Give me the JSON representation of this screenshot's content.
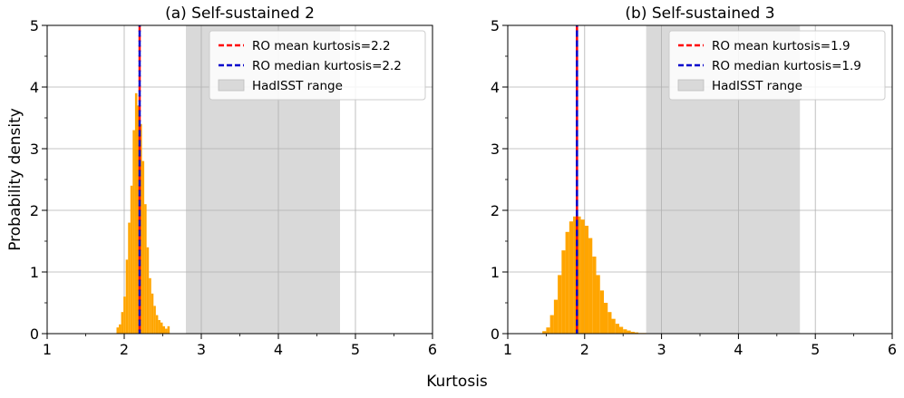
{
  "figure": {
    "shared_xlabel": "Kurtosis",
    "shared_ylabel": "Probability density"
  },
  "chart_data": [
    {
      "type": "histogram",
      "title": "(a) Self-sustained 2",
      "xlabel": "Kurtosis",
      "ylabel": "Probability density",
      "xlim": [
        1,
        6
      ],
      "ylim": [
        0,
        5
      ],
      "xticks": [
        1,
        2,
        3,
        4,
        5,
        6
      ],
      "yticks": [
        0,
        1,
        2,
        3,
        4,
        5
      ],
      "grid": true,
      "bar_color": "#ffa500",
      "hist_x": [
        1.9,
        1.93,
        1.96,
        1.99,
        2.02,
        2.05,
        2.08,
        2.11,
        2.14,
        2.17,
        2.2,
        2.23,
        2.26,
        2.29,
        2.32,
        2.35,
        2.38,
        2.41,
        2.44,
        2.47,
        2.5,
        2.53,
        2.56
      ],
      "hist_y": [
        0.1,
        0.15,
        0.35,
        0.6,
        1.2,
        1.8,
        2.4,
        3.3,
        3.9,
        3.7,
        3.4,
        2.8,
        2.1,
        1.4,
        0.9,
        0.65,
        0.45,
        0.3,
        0.22,
        0.18,
        0.12,
        0.08,
        0.12
      ],
      "bin_width": 0.03,
      "hadisst_range": [
        2.8,
        4.8
      ],
      "hadisst_color": "#d9d9d9",
      "mean_kurtosis": 2.2,
      "median_kurtosis": 2.2,
      "mean_color": "#ff0000",
      "median_color": "#0000cc",
      "legend_position": "upper right",
      "legend": [
        {
          "label": "RO mean kurtosis=2.2",
          "kind": "dash",
          "color": "#ff0000"
        },
        {
          "label": "RO median kurtosis=2.2",
          "kind": "dash",
          "color": "#0000cc"
        },
        {
          "label": "HadISST range",
          "kind": "patch",
          "color": "#d9d9d9"
        }
      ]
    },
    {
      "type": "histogram",
      "title": "(b) Self-sustained 3",
      "xlabel": "Kurtosis",
      "ylabel": "Probability density",
      "xlim": [
        1,
        6
      ],
      "ylim": [
        0,
        5
      ],
      "xticks": [
        1,
        2,
        3,
        4,
        5,
        6
      ],
      "yticks": [
        0,
        1,
        2,
        3,
        4,
        5
      ],
      "grid": true,
      "bar_color": "#ffa500",
      "hist_x": [
        1.45,
        1.5,
        1.55,
        1.6,
        1.65,
        1.7,
        1.75,
        1.8,
        1.85,
        1.9,
        1.95,
        2.0,
        2.05,
        2.1,
        2.15,
        2.2,
        2.25,
        2.3,
        2.35,
        2.4,
        2.45,
        2.5,
        2.55,
        2.6,
        2.65,
        2.7,
        2.75
      ],
      "hist_y": [
        0.04,
        0.1,
        0.3,
        0.55,
        0.95,
        1.35,
        1.65,
        1.82,
        1.9,
        1.9,
        1.85,
        1.75,
        1.55,
        1.25,
        0.95,
        0.7,
        0.5,
        0.35,
        0.24,
        0.16,
        0.11,
        0.07,
        0.05,
        0.03,
        0.02,
        0.01,
        0.01
      ],
      "bin_width": 0.05,
      "hadisst_range": [
        2.8,
        4.8
      ],
      "hadisst_color": "#d9d9d9",
      "mean_kurtosis": 1.9,
      "median_kurtosis": 1.9,
      "mean_color": "#ff0000",
      "median_color": "#0000cc",
      "legend_position": "upper right",
      "legend": [
        {
          "label": "RO mean kurtosis=1.9",
          "kind": "dash",
          "color": "#ff0000"
        },
        {
          "label": "RO median kurtosis=1.9",
          "kind": "dash",
          "color": "#0000cc"
        },
        {
          "label": "HadISST range",
          "kind": "patch",
          "color": "#d9d9d9"
        }
      ]
    }
  ]
}
